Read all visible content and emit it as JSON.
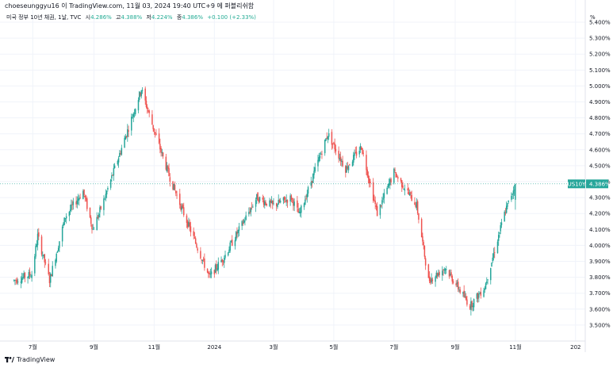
{
  "header": {
    "publisher_line": "choeseunggyu16 이 TradingView.com, 11월 03, 2024 19:40 UTC+9 에 퍼블리쉬함"
  },
  "legend": {
    "symbol": "미국 정부 10년 채권, 1날, TVC",
    "open_label": "시",
    "open": "4.286%",
    "high_label": "고",
    "high": "4.388%",
    "low_label": "저",
    "low": "4.224%",
    "close_label": "종",
    "close": "4.386%",
    "change": "+0.100 (+2.33%)"
  },
  "axis_unit": "%",
  "footer": {
    "brand": "TradingView"
  },
  "colors": {
    "up": "#26a69a",
    "down": "#ef5350",
    "grid": "#f0f3fa",
    "badge": "#26a69a",
    "text": "#131722"
  },
  "chart_data": {
    "type": "candlestick",
    "symbol_badge": "US10Y",
    "last_value": 4.386,
    "last_value_label": "4.386%",
    "ylim": [
      3.4,
      5.42
    ],
    "y_ticks": [
      "3.500%",
      "3.600%",
      "3.700%",
      "3.800%",
      "3.900%",
      "4.000%",
      "4.100%",
      "4.200%",
      "4.300%",
      "4.400%",
      "4.500%",
      "4.600%",
      "4.700%",
      "4.800%",
      "4.900%",
      "5.000%",
      "5.100%",
      "5.200%",
      "5.300%",
      "5.400%"
    ],
    "y_tick_values": [
      3.5,
      3.6,
      3.7,
      3.8,
      3.9,
      4.0,
      4.1,
      4.2,
      4.3,
      4.4,
      4.5,
      4.6,
      4.7,
      4.8,
      4.9,
      5.0,
      5.1,
      5.2,
      5.3,
      5.4
    ],
    "x_ticks": [
      "7월",
      "9월",
      "11월",
      "2024",
      "3월",
      "5월",
      "7월",
      "9월",
      "11월",
      "202"
    ],
    "x_tick_dates": [
      "2023-07",
      "2023-09",
      "2023-11",
      "2024-01",
      "2024-03",
      "2024-05",
      "2024-07",
      "2024-09",
      "2024-11",
      "2025-01"
    ],
    "date_range": [
      "2023-06-12",
      "2024-11-01"
    ],
    "close_path": [
      [
        "2023-06-12",
        3.78
      ],
      [
        "2023-06-30",
        3.82
      ],
      [
        "2023-07-06",
        4.06
      ],
      [
        "2023-07-18",
        3.78
      ],
      [
        "2023-08-03",
        4.18
      ],
      [
        "2023-08-21",
        4.34
      ],
      [
        "2023-08-31",
        4.1
      ],
      [
        "2023-09-12",
        4.3
      ],
      [
        "2023-10-05",
        4.72
      ],
      [
        "2023-10-19",
        4.98
      ],
      [
        "2023-11-01",
        4.72
      ],
      [
        "2023-11-16",
        4.44
      ],
      [
        "2023-12-01",
        4.2
      ],
      [
        "2023-12-27",
        3.8
      ],
      [
        "2024-01-12",
        3.94
      ],
      [
        "2024-02-13",
        4.3
      ],
      [
        "2024-02-29",
        4.25
      ],
      [
        "2024-03-19",
        4.3
      ],
      [
        "2024-03-27",
        4.19
      ],
      [
        "2024-04-25",
        4.7
      ],
      [
        "2024-05-13",
        4.48
      ],
      [
        "2024-05-29",
        4.62
      ],
      [
        "2024-06-14",
        4.2
      ],
      [
        "2024-07-01",
        4.46
      ],
      [
        "2024-07-24",
        4.25
      ],
      [
        "2024-08-05",
        3.78
      ],
      [
        "2024-08-22",
        3.86
      ],
      [
        "2024-09-16",
        3.62
      ],
      [
        "2024-10-01",
        3.74
      ],
      [
        "2024-10-21",
        4.2
      ],
      [
        "2024-11-01",
        4.386
      ]
    ]
  }
}
